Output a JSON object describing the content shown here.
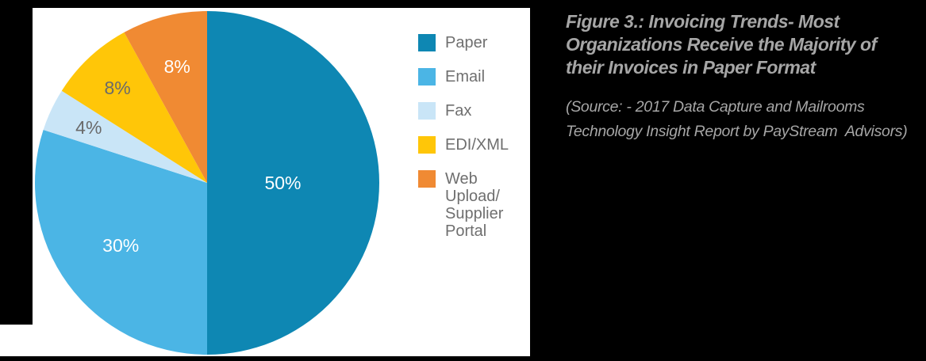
{
  "figure": {
    "title_lines": [
      "Figure 3.: Invoicing Trends- Most",
      "Organizations Receive the Majority of",
      "their Invoices in Paper Format"
    ],
    "source_lines": [
      "(Source: - 2017 Data Capture and Mailrooms",
      "Technology Insight Report by PayStream  Advisors)"
    ],
    "caption_color": "#a6a6a6",
    "background_color": "#000000",
    "chart_background_color": "#ffffff"
  },
  "chart_data": {
    "type": "pie",
    "title": "Figure 3.: Invoicing Trends- Most Organizations Receive the Majority of their Invoices in Paper Format",
    "source": "(Source: - 2017 Data Capture and Mailrooms Technology Insight Report by PayStream  Advisors)",
    "categories": [
      "Paper",
      "Email",
      "Fax",
      "EDI/XML",
      "Web Upload/ Supplier Portal"
    ],
    "values": [
      50,
      30,
      4,
      8,
      8
    ],
    "labels": [
      "50%",
      "30%",
      "4%",
      "8%",
      "8%"
    ],
    "colors": [
      "#0e87b3",
      "#4bb5e5",
      "#c9e5f7",
      "#ffc608",
      "#f08a33"
    ],
    "label_colors": [
      "#ffffff",
      "#ffffff",
      "#6a6a6a",
      "#6a6a6a",
      "#ffffff"
    ],
    "start_angle_deg": 0,
    "direction": "clockwise",
    "legend_position": "right"
  },
  "legend": {
    "text_color": "#6f6f6f",
    "items": [
      {
        "label": "Paper",
        "color": "#0e87b3"
      },
      {
        "label": "Email",
        "color": "#4bb5e5"
      },
      {
        "label": "Fax",
        "color": "#c9e5f7"
      },
      {
        "label": "EDI/XML",
        "color": "#ffc608"
      },
      {
        "label": "Web Upload/\nSupplier Portal",
        "color": "#f08a33"
      }
    ]
  }
}
